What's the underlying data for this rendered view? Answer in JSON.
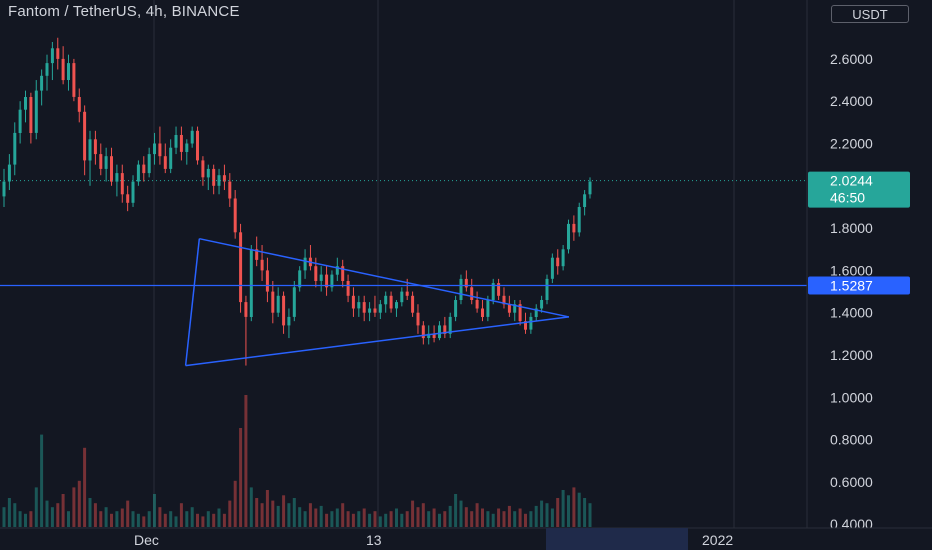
{
  "header": {
    "title": "Fantom / TetherUS, 4h, BINANCE",
    "currency_button": "USDT"
  },
  "price_axis": {
    "ticks": [
      "2.6000",
      "2.4000",
      "2.2000",
      "1.8000",
      "1.6000",
      "1.4000",
      "1.2000",
      "1.0000",
      "0.8000",
      "0.6000",
      "0.4000"
    ],
    "last_price_label": "2.0244",
    "countdown_label": "46:50",
    "level_label": "1.5287"
  },
  "time_axis": {
    "labels": [
      "Dec",
      "13",
      "2022"
    ]
  },
  "colors": {
    "background": "#131722",
    "up": "#26a69a",
    "down": "#ef5350",
    "drawing": "#2962ff",
    "last_price_badge": "#26a69a",
    "level_badge": "#2962ff",
    "axis_text": "#d1d4dc"
  },
  "chart_data": {
    "type": "candlestick",
    "symbol": "Fantom / TetherUS",
    "interval": "4h",
    "exchange": "BINANCE",
    "quote_currency": "USDT",
    "ylim": [
      0.35,
      2.78
    ],
    "last_price": 2.0244,
    "horizontal_level": 1.5287,
    "triangle_upper": [
      [
        1.75,
        0.247
      ],
      [
        1.38,
        0.705
      ]
    ],
    "triangle_lower": [
      [
        1.15,
        0.23
      ],
      [
        1.38,
        0.705
      ]
    ],
    "candles_ohlc": [
      [
        1.95,
        2.08,
        1.9,
        2.02
      ],
      [
        2.02,
        2.15,
        1.98,
        2.1
      ],
      [
        2.1,
        2.3,
        2.05,
        2.25
      ],
      [
        2.25,
        2.4,
        2.2,
        2.36
      ],
      [
        2.36,
        2.45,
        2.3,
        2.42
      ],
      [
        2.42,
        2.44,
        2.2,
        2.25
      ],
      [
        2.25,
        2.5,
        2.22,
        2.45
      ],
      [
        2.45,
        2.55,
        2.38,
        2.52
      ],
      [
        2.52,
        2.62,
        2.45,
        2.58
      ],
      [
        2.58,
        2.68,
        2.5,
        2.65
      ],
      [
        2.65,
        2.7,
        2.55,
        2.6
      ],
      [
        2.6,
        2.66,
        2.48,
        2.5
      ],
      [
        2.5,
        2.62,
        2.45,
        2.58
      ],
      [
        2.58,
        2.6,
        2.4,
        2.42
      ],
      [
        2.42,
        2.46,
        2.3,
        2.35
      ],
      [
        2.35,
        2.38,
        2.05,
        2.12
      ],
      [
        2.12,
        2.26,
        2.0,
        2.22
      ],
      [
        2.22,
        2.26,
        2.1,
        2.15
      ],
      [
        2.15,
        2.2,
        2.05,
        2.08
      ],
      [
        2.08,
        2.18,
        2.02,
        2.14
      ],
      [
        2.14,
        2.18,
        2.0,
        2.02
      ],
      [
        2.02,
        2.1,
        1.95,
        2.06
      ],
      [
        2.06,
        2.1,
        1.92,
        1.96
      ],
      [
        1.96,
        2.0,
        1.88,
        1.92
      ],
      [
        1.92,
        2.05,
        1.9,
        2.02
      ],
      [
        2.02,
        2.12,
        2.0,
        2.1
      ],
      [
        2.1,
        2.14,
        2.02,
        2.06
      ],
      [
        2.06,
        2.18,
        2.04,
        2.15
      ],
      [
        2.15,
        2.25,
        2.1,
        2.2
      ],
      [
        2.2,
        2.28,
        2.1,
        2.14
      ],
      [
        2.14,
        2.2,
        2.06,
        2.08
      ],
      [
        2.08,
        2.22,
        2.06,
        2.18
      ],
      [
        2.18,
        2.28,
        2.15,
        2.24
      ],
      [
        2.24,
        2.28,
        2.12,
        2.16
      ],
      [
        2.16,
        2.22,
        2.1,
        2.2
      ],
      [
        2.2,
        2.28,
        2.18,
        2.26
      ],
      [
        2.26,
        2.28,
        2.1,
        2.12
      ],
      [
        2.12,
        2.14,
        2.0,
        2.04
      ],
      [
        2.04,
        2.1,
        1.98,
        2.08
      ],
      [
        2.08,
        2.1,
        1.96,
        2.0
      ],
      [
        2.0,
        2.08,
        1.96,
        2.05
      ],
      [
        2.05,
        2.1,
        1.98,
        2.02
      ],
      [
        2.02,
        2.06,
        1.9,
        1.94
      ],
      [
        1.94,
        1.98,
        1.75,
        1.78
      ],
      [
        1.78,
        1.82,
        1.4,
        1.45
      ],
      [
        1.45,
        1.48,
        1.15,
        1.38
      ],
      [
        1.38,
        1.72,
        1.36,
        1.7
      ],
      [
        1.7,
        1.76,
        1.62,
        1.65
      ],
      [
        1.65,
        1.72,
        1.55,
        1.6
      ],
      [
        1.6,
        1.66,
        1.45,
        1.5
      ],
      [
        1.5,
        1.55,
        1.35,
        1.4
      ],
      [
        1.4,
        1.52,
        1.38,
        1.48
      ],
      [
        1.48,
        1.5,
        1.3,
        1.34
      ],
      [
        1.34,
        1.42,
        1.28,
        1.38
      ],
      [
        1.38,
        1.55,
        1.36,
        1.52
      ],
      [
        1.52,
        1.62,
        1.5,
        1.6
      ],
      [
        1.6,
        1.7,
        1.56,
        1.66
      ],
      [
        1.66,
        1.72,
        1.6,
        1.62
      ],
      [
        1.62,
        1.66,
        1.52,
        1.55
      ],
      [
        1.55,
        1.62,
        1.5,
        1.58
      ],
      [
        1.58,
        1.62,
        1.48,
        1.52
      ],
      [
        1.52,
        1.6,
        1.5,
        1.58
      ],
      [
        1.58,
        1.66,
        1.55,
        1.62
      ],
      [
        1.62,
        1.65,
        1.52,
        1.55
      ],
      [
        1.55,
        1.58,
        1.45,
        1.48
      ],
      [
        1.48,
        1.52,
        1.38,
        1.42
      ],
      [
        1.42,
        1.48,
        1.38,
        1.45
      ],
      [
        1.45,
        1.48,
        1.36,
        1.4
      ],
      [
        1.4,
        1.45,
        1.36,
        1.42
      ],
      [
        1.42,
        1.48,
        1.38,
        1.4
      ],
      [
        1.4,
        1.46,
        1.37,
        1.44
      ],
      [
        1.44,
        1.5,
        1.4,
        1.48
      ],
      [
        1.48,
        1.5,
        1.4,
        1.42
      ],
      [
        1.42,
        1.46,
        1.38,
        1.45
      ],
      [
        1.45,
        1.52,
        1.43,
        1.5
      ],
      [
        1.5,
        1.56,
        1.46,
        1.48
      ],
      [
        1.48,
        1.5,
        1.38,
        1.4
      ],
      [
        1.4,
        1.44,
        1.3,
        1.34
      ],
      [
        1.34,
        1.36,
        1.25,
        1.28
      ],
      [
        1.28,
        1.34,
        1.25,
        1.3
      ],
      [
        1.3,
        1.34,
        1.26,
        1.28
      ],
      [
        1.28,
        1.36,
        1.27,
        1.34
      ],
      [
        1.34,
        1.38,
        1.28,
        1.3
      ],
      [
        1.3,
        1.4,
        1.28,
        1.38
      ],
      [
        1.38,
        1.48,
        1.36,
        1.46
      ],
      [
        1.46,
        1.58,
        1.44,
        1.56
      ],
      [
        1.56,
        1.6,
        1.5,
        1.52
      ],
      [
        1.52,
        1.56,
        1.44,
        1.46
      ],
      [
        1.46,
        1.5,
        1.4,
        1.42
      ],
      [
        1.42,
        1.46,
        1.36,
        1.38
      ],
      [
        1.38,
        1.48,
        1.36,
        1.46
      ],
      [
        1.46,
        1.56,
        1.44,
        1.54
      ],
      [
        1.54,
        1.56,
        1.46,
        1.48
      ],
      [
        1.48,
        1.52,
        1.42,
        1.44
      ],
      [
        1.44,
        1.48,
        1.38,
        1.4
      ],
      [
        1.4,
        1.46,
        1.36,
        1.44
      ],
      [
        1.44,
        1.46,
        1.34,
        1.36
      ],
      [
        1.36,
        1.4,
        1.3,
        1.32
      ],
      [
        1.32,
        1.4,
        1.3,
        1.38
      ],
      [
        1.38,
        1.44,
        1.36,
        1.42
      ],
      [
        1.42,
        1.48,
        1.4,
        1.46
      ],
      [
        1.46,
        1.58,
        1.44,
        1.56
      ],
      [
        1.56,
        1.68,
        1.54,
        1.66
      ],
      [
        1.66,
        1.7,
        1.58,
        1.62
      ],
      [
        1.62,
        1.72,
        1.6,
        1.7
      ],
      [
        1.7,
        1.84,
        1.68,
        1.82
      ],
      [
        1.82,
        1.86,
        1.74,
        1.78
      ],
      [
        1.78,
        1.92,
        1.76,
        1.9
      ],
      [
        1.9,
        1.98,
        1.86,
        1.96
      ],
      [
        1.96,
        2.04,
        1.94,
        2.02
      ]
    ],
    "volume_relative": [
      0.15,
      0.22,
      0.18,
      0.12,
      0.1,
      0.12,
      0.3,
      0.7,
      0.2,
      0.15,
      0.18,
      0.25,
      0.12,
      0.3,
      0.35,
      0.6,
      0.22,
      0.18,
      0.12,
      0.15,
      0.1,
      0.12,
      0.14,
      0.2,
      0.12,
      0.1,
      0.08,
      0.12,
      0.25,
      0.15,
      0.1,
      0.12,
      0.08,
      0.18,
      0.12,
      0.15,
      0.1,
      0.08,
      0.12,
      0.1,
      0.14,
      0.1,
      0.2,
      0.35,
      0.75,
      1.0,
      0.3,
      0.22,
      0.18,
      0.28,
      0.2,
      0.16,
      0.24,
      0.18,
      0.22,
      0.15,
      0.12,
      0.18,
      0.14,
      0.16,
      0.1,
      0.12,
      0.14,
      0.18,
      0.12,
      0.1,
      0.12,
      0.14,
      0.1,
      0.12,
      0.08,
      0.1,
      0.12,
      0.14,
      0.1,
      0.12,
      0.2,
      0.15,
      0.18,
      0.12,
      0.14,
      0.1,
      0.12,
      0.16,
      0.25,
      0.2,
      0.15,
      0.12,
      0.18,
      0.14,
      0.12,
      0.1,
      0.14,
      0.12,
      0.16,
      0.12,
      0.14,
      0.1,
      0.12,
      0.16,
      0.2,
      0.18,
      0.14,
      0.22,
      0.28,
      0.24,
      0.3,
      0.26,
      0.22,
      0.18
    ]
  }
}
